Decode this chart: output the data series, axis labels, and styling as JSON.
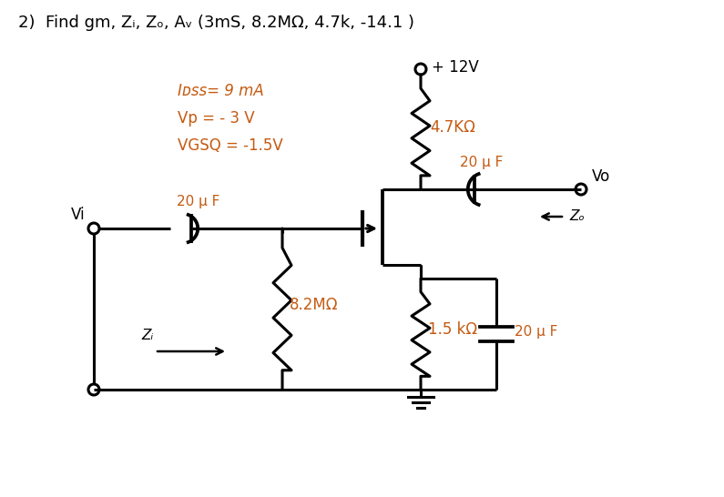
{
  "title": "2)  Find gm, Zᵢ, Zₒ, Aᵥ (3mS, 8.2MΩ, 4.7k, -14.1 )",
  "bg_color": "#ffffff",
  "line_color": "#000000",
  "title_fontsize": 13,
  "params_text": [
    "Iᴅss= 9 mA",
    "Vp = - 3 V",
    "VGSQ = -1.5V"
  ],
  "vdd_label": "+ 12V",
  "rd_label": "4.7KΩ",
  "rs_label": "1.5 kΩ",
  "rg_label": "8.2MΩ",
  "c1_label": "20 μ F",
  "c2_label": "20 μ F",
  "cs_label": "20 μ F",
  "vi_label": "Vi",
  "vo_label": "Vo",
  "zi_label": "Zᵢ",
  "zo_label": "Zₒ",
  "label_color": "#c55a11",
  "circuit_color": "#000000"
}
